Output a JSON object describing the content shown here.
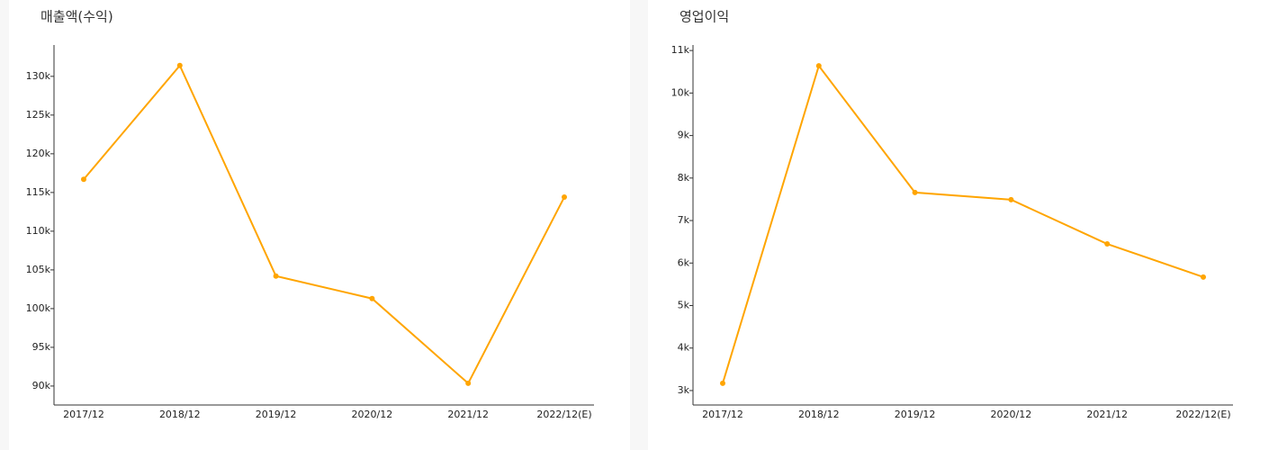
{
  "chart_data": [
    {
      "type": "line",
      "title": "매출액(수익)",
      "categories": [
        "2017/12",
        "2018/12",
        "2019/12",
        "2020/12",
        "2021/12",
        "2022/12(E)"
      ],
      "values": [
        116700,
        131400,
        104200,
        101300,
        90350,
        114400
      ],
      "color": "#ffa500",
      "ylim": [
        87550,
        134050
      ],
      "yticks": [
        {
          "value": 90000,
          "label": "90k"
        },
        {
          "value": 95000,
          "label": "95k"
        },
        {
          "value": 100000,
          "label": "100k"
        },
        {
          "value": 105000,
          "label": "105k"
        },
        {
          "value": 110000,
          "label": "110k"
        },
        {
          "value": 115000,
          "label": "115k"
        },
        {
          "value": 120000,
          "label": "120k"
        },
        {
          "value": 125000,
          "label": "125k"
        },
        {
          "value": 130000,
          "label": "130k"
        }
      ]
    },
    {
      "type": "line",
      "title": "영업이익",
      "categories": [
        "2017/12",
        "2018/12",
        "2019/12",
        "2020/12",
        "2021/12",
        "2022/12(E)"
      ],
      "values": [
        3170,
        10640,
        7660,
        7490,
        6450,
        5670
      ],
      "color": "#ffa500",
      "ylim": [
        2660,
        11130
      ],
      "yticks": [
        {
          "value": 3000,
          "label": "3k"
        },
        {
          "value": 4000,
          "label": "4k"
        },
        {
          "value": 5000,
          "label": "5k"
        },
        {
          "value": 6000,
          "label": "6k"
        },
        {
          "value": 7000,
          "label": "7k"
        },
        {
          "value": 8000,
          "label": "8k"
        },
        {
          "value": 9000,
          "label": "9k"
        },
        {
          "value": 10000,
          "label": "10k"
        },
        {
          "value": 11000,
          "label": "11k"
        }
      ]
    }
  ]
}
